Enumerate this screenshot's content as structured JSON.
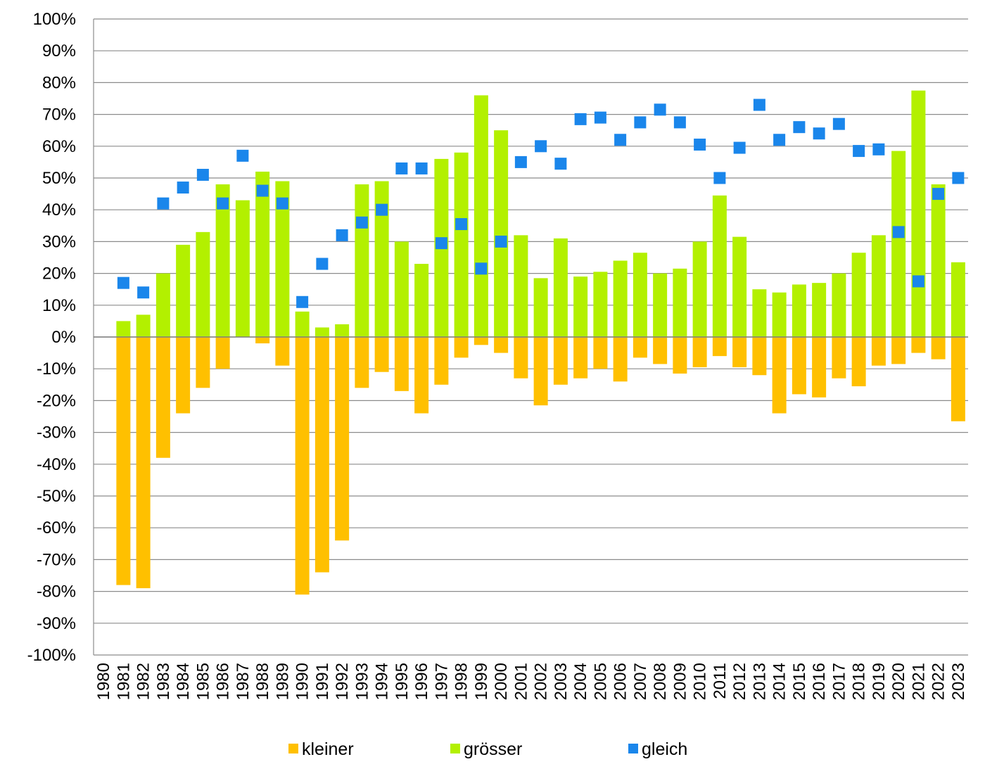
{
  "chart_data": {
    "type": "bar",
    "stacked": true,
    "ylim": [
      -100,
      100
    ],
    "ytick_step": 10,
    "ytick_suffix": "%",
    "grid": true,
    "legend_position": "bottom",
    "categories": [
      "1980",
      "1981",
      "1982",
      "1983",
      "1984",
      "1985",
      "1986",
      "1987",
      "1988",
      "1989",
      "1990",
      "1991",
      "1992",
      "1993",
      "1994",
      "1995",
      "1996",
      "1997",
      "1998",
      "1999",
      "2000",
      "2001",
      "2002",
      "2003",
      "2004",
      "2005",
      "2006",
      "2007",
      "2008",
      "2009",
      "2010",
      "2011",
      "2012",
      "2013",
      "2014",
      "2015",
      "2016",
      "2017",
      "2018",
      "2019",
      "2020",
      "2021",
      "2022",
      "2023"
    ],
    "series": [
      {
        "name": "kleiner",
        "type": "bar",
        "color": "#FFC000",
        "values": [
          null,
          -78,
          -79,
          -38,
          -24,
          -16,
          -10,
          0,
          -2,
          -9,
          -81,
          -74,
          -64,
          -16,
          -11,
          -17,
          -24,
          -15,
          -6.5,
          -2.5,
          -5,
          -13,
          -21.5,
          -15,
          -13,
          -10,
          -14,
          -6.5,
          -8.5,
          -11.5,
          -9.5,
          -6,
          -9.5,
          -12,
          -24,
          -18,
          -19,
          -13,
          -15.5,
          -9,
          -8.5,
          -5,
          -7,
          -26.5
        ]
      },
      {
        "name": "grösser",
        "type": "bar",
        "color": "#B3F000",
        "values": [
          null,
          5,
          7,
          20,
          29,
          33,
          48,
          43,
          52,
          49,
          8,
          3,
          4,
          48,
          49,
          30,
          23,
          56,
          58,
          76,
          65,
          32,
          18.5,
          31,
          19,
          20.5,
          24,
          26.5,
          20,
          21.5,
          30,
          44.5,
          31.5,
          15,
          14,
          16.5,
          17,
          20,
          26.5,
          32,
          58.5,
          77.5,
          48,
          23.5
        ]
      },
      {
        "name": "gleich",
        "type": "marker",
        "color": "#1A86EB",
        "values": [
          null,
          17,
          14,
          42,
          47,
          51,
          42,
          57,
          46,
          42,
          11,
          23,
          32,
          36,
          40,
          53,
          53,
          29.5,
          35.5,
          21.5,
          30,
          55,
          60,
          54.5,
          68.5,
          69,
          62,
          67.5,
          71.5,
          67.5,
          60.5,
          50,
          59.5,
          73,
          62,
          66,
          64,
          67,
          58.5,
          59,
          33,
          17.5,
          45,
          50
        ]
      }
    ]
  }
}
